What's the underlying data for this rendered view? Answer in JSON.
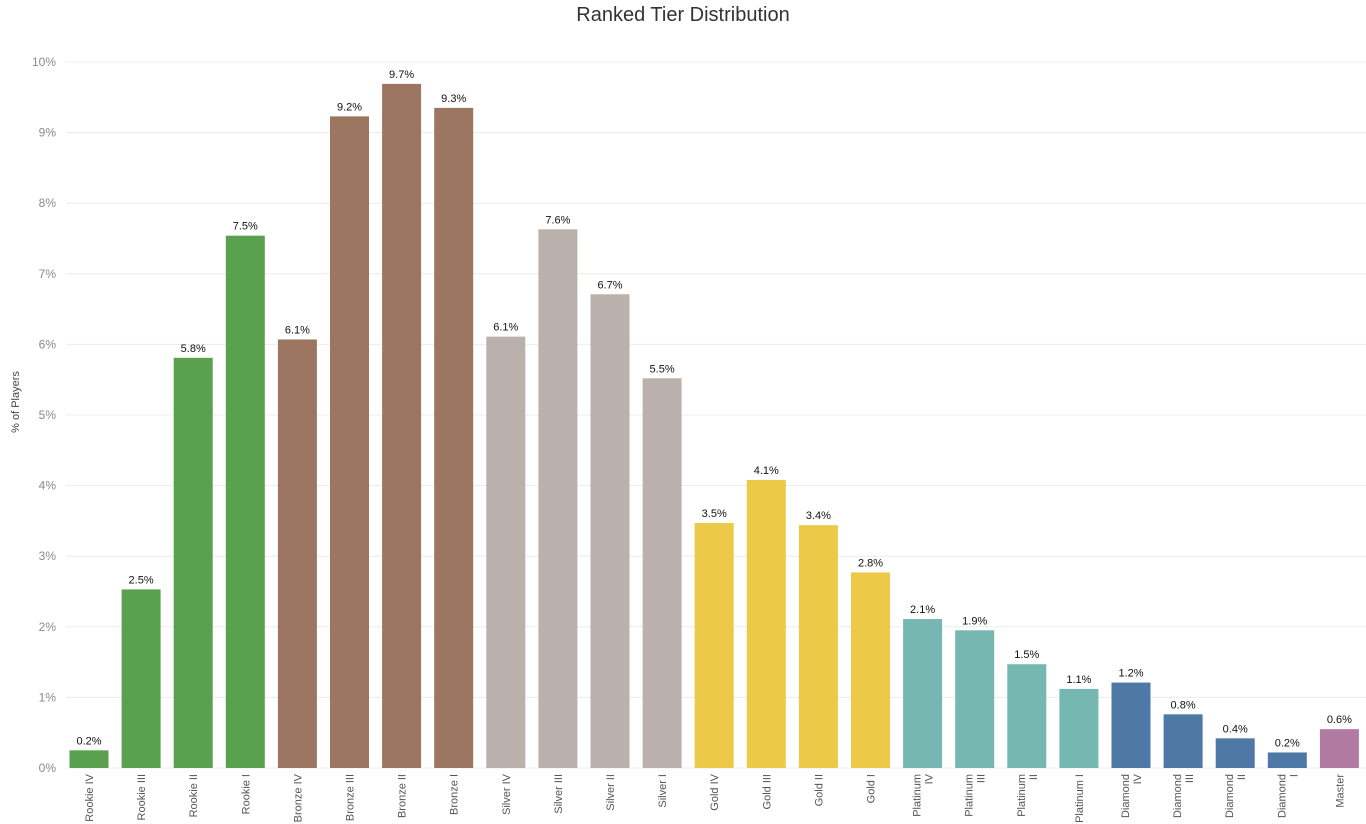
{
  "chart_data": {
    "type": "bar",
    "title": "Ranked Tier Distribution",
    "xlabel": "",
    "ylabel": "% of Players",
    "ylim": [
      0,
      10
    ],
    "yticks": [
      "0%",
      "1%",
      "2%",
      "3%",
      "4%",
      "5%",
      "6%",
      "7%",
      "8%",
      "9%",
      "10%"
    ],
    "grid": true,
    "categories": [
      "Rookie IV",
      "Rookie III",
      "Rookie II",
      "Rookie I",
      "Bronze IV",
      "Bronze III",
      "Bronze II",
      "Bronze I",
      "Silver IV",
      "Silver III",
      "Silver II",
      "Silver I",
      "Gold IV",
      "Gold III",
      "Gold II",
      "Gold I",
      "Platinum IV",
      "Platinum III",
      "Platinum II",
      "Platinum I",
      "Diamond IV",
      "Diamond III",
      "Diamond II",
      "Diamond I",
      "Master"
    ],
    "category_lines": [
      [
        "Rookie IV"
      ],
      [
        "Rookie III"
      ],
      [
        "Rookie II"
      ],
      [
        "Rookie I"
      ],
      [
        "Bronze IV"
      ],
      [
        "Bronze III"
      ],
      [
        "Bronze II"
      ],
      [
        "Bronze I"
      ],
      [
        "Silver IV"
      ],
      [
        "Silver III"
      ],
      [
        "Silver II"
      ],
      [
        "Silver I"
      ],
      [
        "Gold IV"
      ],
      [
        "Gold III"
      ],
      [
        "Gold II"
      ],
      [
        "Gold I"
      ],
      [
        "Platinum",
        "IV"
      ],
      [
        "Platinum",
        "III"
      ],
      [
        "Platinum",
        "II"
      ],
      [
        "Platinum I"
      ],
      [
        "Diamond",
        "IV"
      ],
      [
        "Diamond",
        "III"
      ],
      [
        "Diamond",
        "II"
      ],
      [
        "Diamond",
        "I"
      ],
      [
        "Master"
      ]
    ],
    "values": [
      0.25,
      2.53,
      5.81,
      7.54,
      6.07,
      9.23,
      9.69,
      9.35,
      6.11,
      7.63,
      6.71,
      5.52,
      3.47,
      4.08,
      3.44,
      2.77,
      2.11,
      1.95,
      1.47,
      1.12,
      1.21,
      0.76,
      0.42,
      0.22,
      0.55
    ],
    "data_labels": [
      "0.2%",
      "2.5%",
      "5.8%",
      "7.5%",
      "6.1%",
      "9.2%",
      "9.7%",
      "9.3%",
      "6.1%",
      "7.6%",
      "6.7%",
      "5.5%",
      "3.5%",
      "4.1%",
      "3.4%",
      "2.8%",
      "2.1%",
      "1.9%",
      "1.5%",
      "1.1%",
      "1.2%",
      "0.8%",
      "0.4%",
      "0.2%",
      "0.6%"
    ],
    "colors": [
      "#59a14f",
      "#59a14f",
      "#59a14f",
      "#59a14f",
      "#9c7660",
      "#9c7660",
      "#9c7660",
      "#9c7660",
      "#bab0ac",
      "#bab0ac",
      "#bab0ac",
      "#bab0ac",
      "#edc948",
      "#edc948",
      "#edc948",
      "#edc948",
      "#76b7b2",
      "#76b7b2",
      "#76b7b2",
      "#76b7b2",
      "#4e79a7",
      "#4e79a7",
      "#4e79a7",
      "#4e79a7",
      "#b07aa1"
    ]
  }
}
